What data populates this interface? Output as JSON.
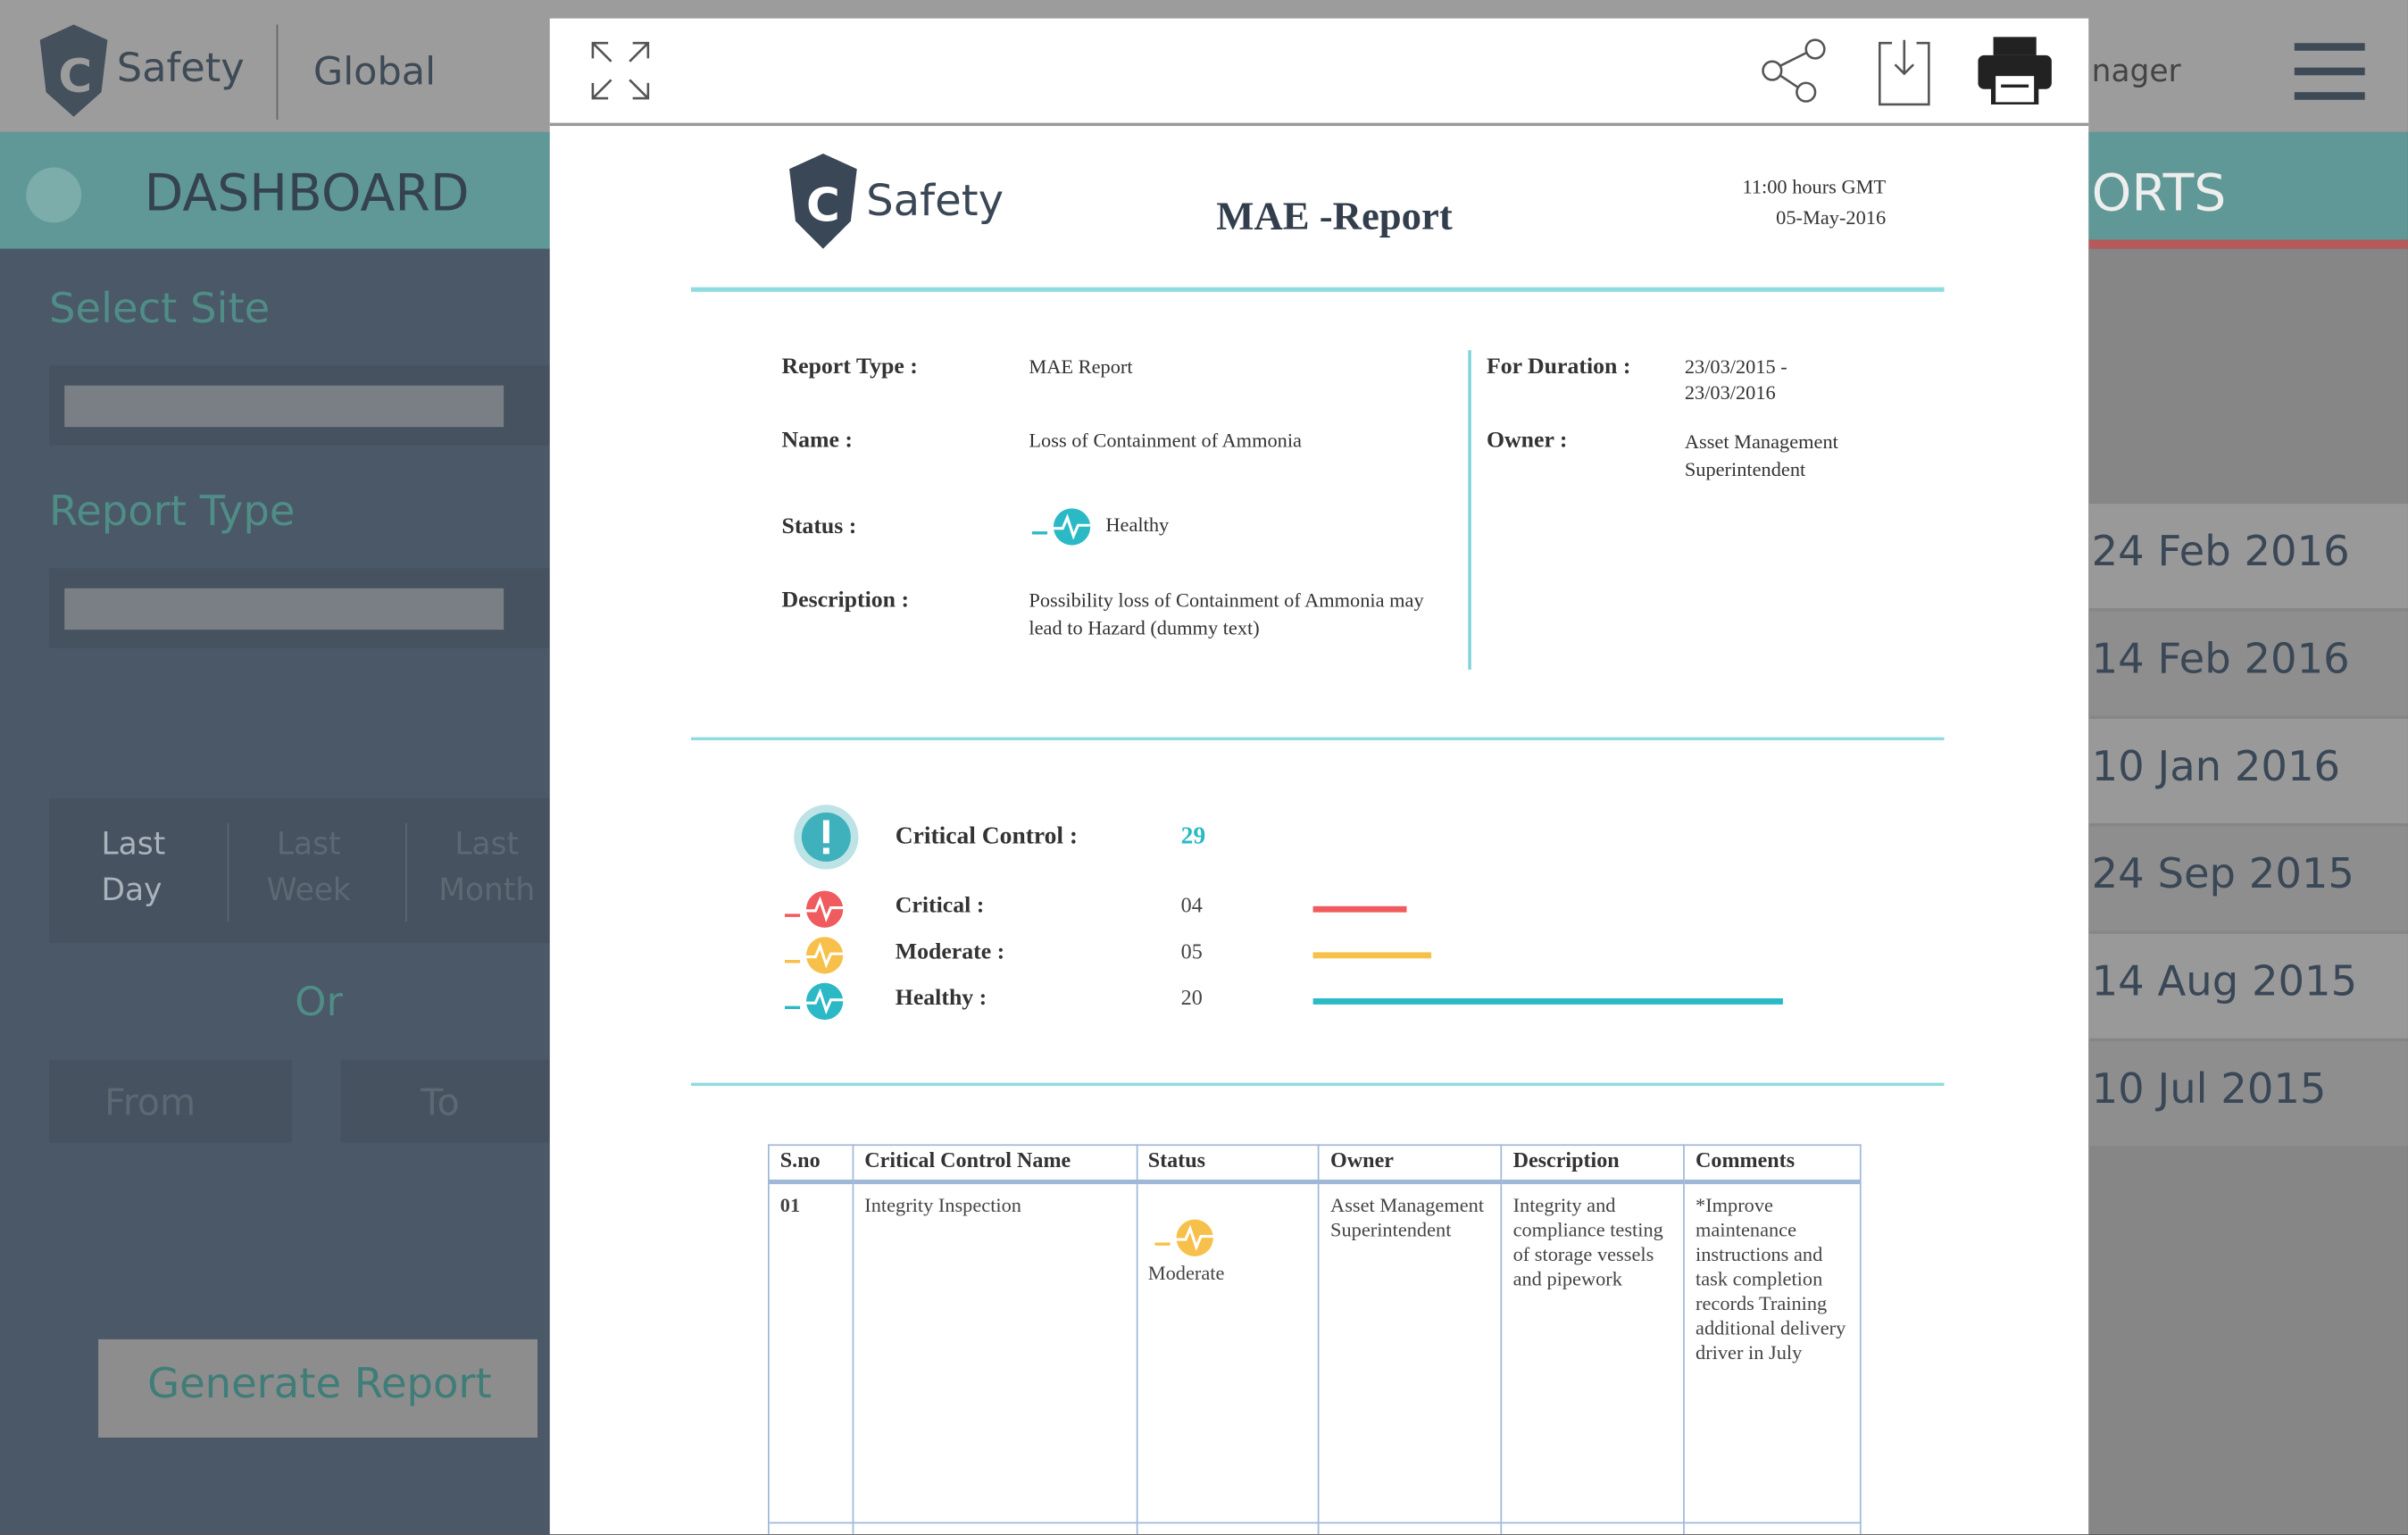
{
  "app": {
    "logo": "Safety",
    "region": "Global",
    "user": "nager",
    "nav": "DASHBOARD",
    "nav_right": "ORTS",
    "sidebar": {
      "select_site": "Select Site",
      "report_type": "Report Type",
      "periods": [
        "Last Day",
        "Last Week",
        "Last Month"
      ],
      "or": "Or",
      "from": "From",
      "to": "To",
      "generate": "Generate Report"
    },
    "dates": [
      "24 Feb 2016",
      "14 Feb 2016",
      "10 Jan 2016",
      "24 Sep 2015",
      "14 Aug 2015",
      "10 Jul 2015"
    ]
  },
  "report": {
    "logo": "Safety",
    "title": "MAE -Report",
    "time": "11:00 hours GMT",
    "date": "05-May-2016",
    "fields": {
      "report_type_label": "Report Type :",
      "report_type": "MAE Report",
      "name_label": "Name :",
      "name": "Loss of Containment of Ammonia",
      "status_label": "Status :",
      "status": "Healthy",
      "description_label": "Description :",
      "description": "Possibility loss of Containment of Ammonia may lead to Hazard (dummy text)",
      "duration_label": "For Duration :",
      "duration": "23/03/2015 - 23/03/2016",
      "owner_label": "Owner :",
      "owner": "Asset Management Superintendent"
    },
    "summary": {
      "label": "Critical Control :",
      "total": "29",
      "levels": [
        {
          "name": "Critical :",
          "count": {
            "value": 4,
            "label": "04"
          },
          "color": "#ef5b5f"
        },
        {
          "name": "Moderate :",
          "count": {
            "value": 5,
            "label": "05"
          },
          "color": "#f7c04a"
        },
        {
          "name": "Healthy :",
          "count": {
            "value": 20,
            "label": "20"
          },
          "color": "#2bb9c6"
        }
      ]
    },
    "table": {
      "headers": [
        "S.no",
        "Critical Control Name",
        "Status",
        "Owner",
        "Description",
        "Comments"
      ],
      "rows": [
        [
          "01",
          "Integrity Inspection",
          "Moderate",
          "Asset Management Superintendent",
          "Integrity and compliance testing of storage vessels and pipework",
          "*Improve maintenance instructions and task completion records Training additional delivery driver in July"
        ]
      ]
    }
  }
}
